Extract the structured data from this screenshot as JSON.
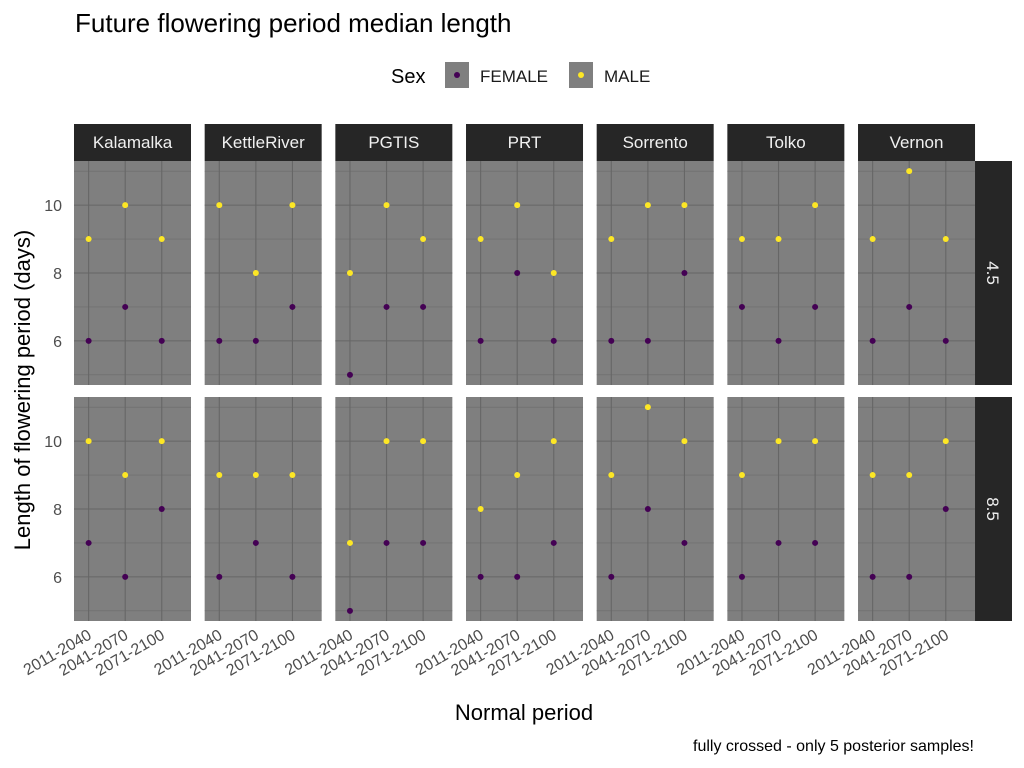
{
  "chart_data": {
    "type": "scatter",
    "title": "Future flowering period median length",
    "xlabel": "Normal period",
    "ylabel": "Length of flowering period (days)",
    "caption": "fully crossed - only 5 posterior samples!",
    "legend": {
      "title": "Sex",
      "placement": "top",
      "entries": [
        {
          "name": "FEMALE",
          "color": "#440154"
        },
        {
          "name": "MALE",
          "color": "#FDE725"
        }
      ]
    },
    "x_categories": [
      "2011-2040",
      "2041-2070",
      "2071-2100"
    ],
    "y_ticks": [
      6,
      8,
      10
    ],
    "ylim": [
      4.7,
      11.3
    ],
    "grid": true,
    "panel_background": "#7f7f7f",
    "strip_background": "#262626",
    "facet_columns": [
      "Kalamalka",
      "KettleRiver",
      "PGTIS",
      "PRT",
      "Sorrento",
      "Tolko",
      "Vernon"
    ],
    "facet_rows": [
      "4.5",
      "8.5"
    ],
    "panels": {
      "4.5": {
        "Kalamalka": {
          "FEMALE": [
            6,
            7,
            6
          ],
          "MALE": [
            9,
            10,
            9
          ]
        },
        "KettleRiver": {
          "FEMALE": [
            6,
            6,
            7
          ],
          "MALE": [
            10,
            8,
            10
          ]
        },
        "PGTIS": {
          "FEMALE": [
            5,
            7,
            7
          ],
          "MALE": [
            8,
            10,
            9
          ]
        },
        "PRT": {
          "FEMALE": [
            6,
            8,
            6
          ],
          "MALE": [
            9,
            10,
            8
          ]
        },
        "Sorrento": {
          "FEMALE": [
            6,
            6,
            8
          ],
          "MALE": [
            9,
            10,
            10
          ]
        },
        "Tolko": {
          "FEMALE": [
            7,
            6,
            7
          ],
          "MALE": [
            9,
            9,
            10
          ]
        },
        "Vernon": {
          "FEMALE": [
            6,
            7,
            6
          ],
          "MALE": [
            9,
            11,
            9
          ]
        }
      },
      "8.5": {
        "Kalamalka": {
          "FEMALE": [
            7,
            6,
            8
          ],
          "MALE": [
            10,
            9,
            10
          ]
        },
        "KettleRiver": {
          "FEMALE": [
            6,
            7,
            6
          ],
          "MALE": [
            9,
            9,
            9
          ]
        },
        "PGTIS": {
          "FEMALE": [
            5,
            7,
            7
          ],
          "MALE": [
            7,
            10,
            10
          ]
        },
        "PRT": {
          "FEMALE": [
            6,
            6,
            7
          ],
          "MALE": [
            8,
            9,
            10
          ]
        },
        "Sorrento": {
          "FEMALE": [
            6,
            8,
            7
          ],
          "MALE": [
            9,
            11,
            10
          ]
        },
        "Tolko": {
          "FEMALE": [
            6,
            7,
            7
          ],
          "MALE": [
            9,
            10,
            10
          ]
        },
        "Vernon": {
          "FEMALE": [
            6,
            6,
            8
          ],
          "MALE": [
            9,
            9,
            10
          ]
        }
      }
    }
  }
}
